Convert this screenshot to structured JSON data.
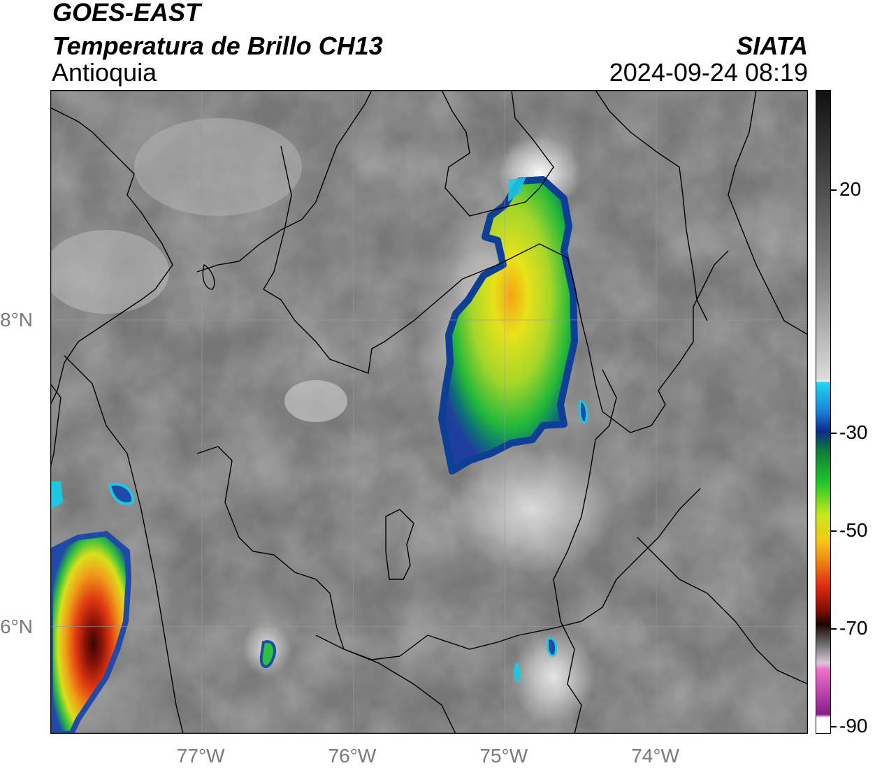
{
  "header": {
    "satellite": "GOES-EAST",
    "product": "Temperatura de Brillo CH13",
    "region": "Antioquia",
    "agency": "SIATA",
    "datetime": "2024-09-24 08:19"
  },
  "map": {
    "lon_range": [
      -78.0,
      -73.0
    ],
    "lat_range": [
      5.3,
      9.5
    ],
    "lon_ticks": [
      {
        "value": -77,
        "label": "77°W"
      },
      {
        "value": -76,
        "label": "76°W"
      },
      {
        "value": -75,
        "label": "75°W"
      },
      {
        "value": -74,
        "label": "74°W"
      }
    ],
    "lat_ticks": [
      {
        "value": 8,
        "label": "8°N"
      },
      {
        "value": 6,
        "label": "6°N"
      }
    ],
    "grid": true
  },
  "colorbar": {
    "ticks": [
      {
        "value": 20,
        "label": "20"
      },
      {
        "value": -30,
        "label": "-30"
      },
      {
        "value": -50,
        "label": "-50"
      },
      {
        "value": -70,
        "label": "-70"
      },
      {
        "value": -90,
        "label": "-90"
      }
    ],
    "range": [
      -90,
      40
    ]
  },
  "colors": {
    "cold_cloud_blue": "#1f4aa8",
    "cyan": "#1ec8e0",
    "green": "#2fbf3f",
    "yellow": "#f2e11a",
    "red": "#d62b12",
    "dark_red": "#4a0a05",
    "magenta": "#c248c2"
  }
}
